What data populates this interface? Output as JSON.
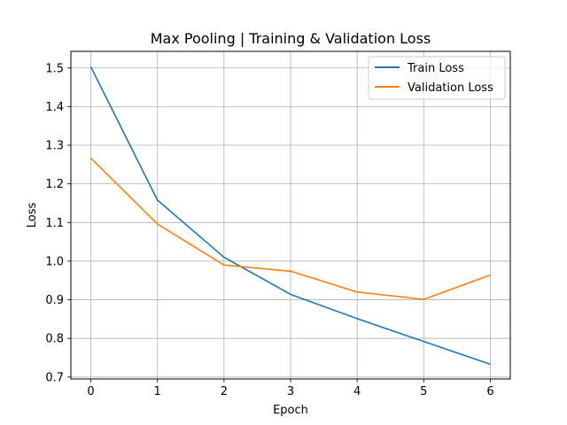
{
  "chart_data": {
    "type": "line",
    "title": "Max Pooling | Training & Validation Loss",
    "xlabel": "Epoch",
    "ylabel": "Loss",
    "x": [
      0,
      1,
      2,
      3,
      4,
      5,
      6
    ],
    "xticks": [
      "0",
      "1",
      "2",
      "3",
      "4",
      "5",
      "6"
    ],
    "yticks": [
      "0.7",
      "0.8",
      "0.9",
      "1.0",
      "1.1",
      "1.2",
      "1.3",
      "1.4",
      "1.5"
    ],
    "xlim": [
      -0.3,
      6.3
    ],
    "ylim": [
      0.695,
      1.543
    ],
    "grid": true,
    "legend_position": "top-right",
    "series": [
      {
        "name": "Train Loss",
        "color": "#1f77b4",
        "values": [
          1.503,
          1.158,
          1.01,
          0.914,
          0.851,
          0.792,
          0.733
        ]
      },
      {
        "name": "Validation Loss",
        "color": "#ff7f0e",
        "values": [
          1.267,
          1.096,
          0.99,
          0.974,
          0.92,
          0.901,
          0.964
        ]
      }
    ]
  }
}
